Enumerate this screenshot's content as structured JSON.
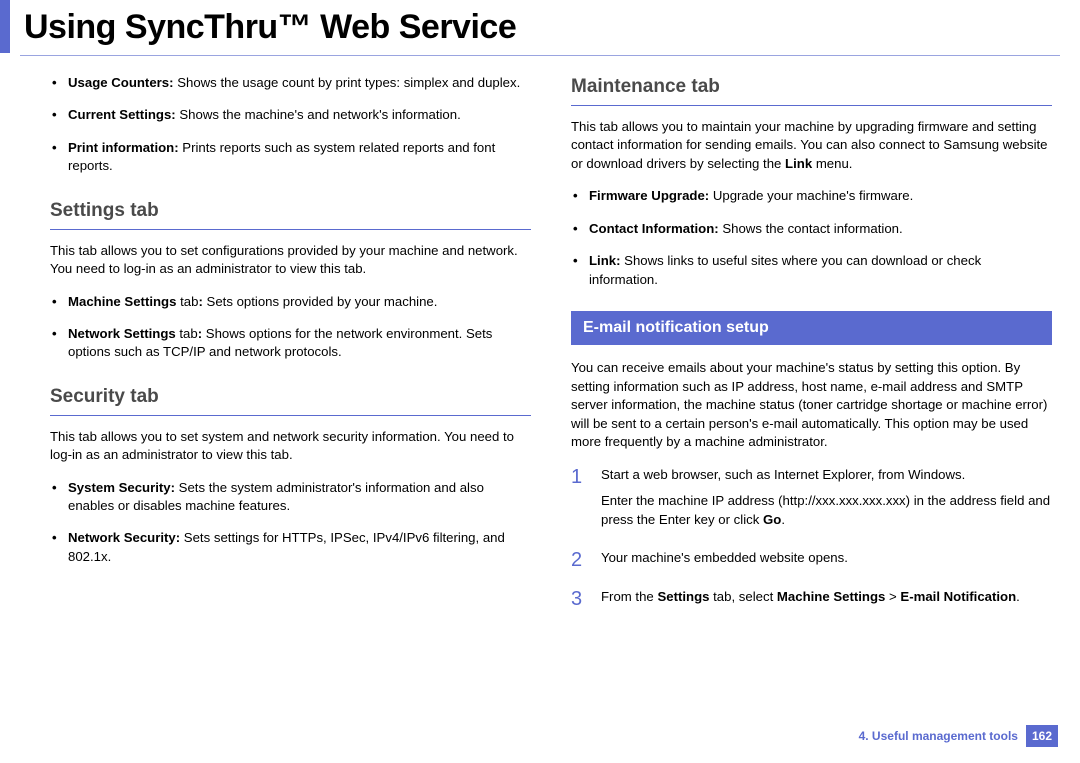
{
  "page": {
    "title": "Using SyncThru™ Web Service",
    "footer_label": "4.  Useful management tools",
    "footer_page": "162"
  },
  "colors": {
    "accent": "#5a6acf",
    "title_underline": "#9aa4e0",
    "heading_gray": "#4a4a4a"
  },
  "left": {
    "info_tab_bullets": [
      {
        "bold": "Usage Counters:",
        "text": " Shows the usage count by print types: simplex and duplex."
      },
      {
        "bold": "Current Settings:",
        "text": " Shows the machine's and network's information."
      },
      {
        "bold": "Print information:",
        "text": " Prints reports such as system related reports and font reports."
      }
    ],
    "settings": {
      "heading": "Settings tab",
      "body": "This tab allows you to set configurations provided by your machine and network. You need to log-in as an administrator to view this tab.",
      "bullets": [
        {
          "bold": "Machine Settings",
          "mid": " tab",
          "bold2": ":",
          "text": " Sets options provided by your machine."
        },
        {
          "bold": "Network Settings",
          "mid": " tab",
          "bold2": ":",
          "text": " Shows options for the network environment. Sets options such as TCP/IP and network protocols."
        }
      ]
    },
    "security": {
      "heading": "Security tab",
      "body": "This tab allows you to set system and network security information. You need to log-in as an administrator to view this tab.",
      "bullets": [
        {
          "bold": "System Security:",
          "text": " Sets the system administrator's information and also enables or disables machine features."
        },
        {
          "bold": "Network Security:",
          "text": " Sets settings for HTTPs, IPSec, IPv4/IPv6 filtering, and 802.1x."
        }
      ]
    }
  },
  "right": {
    "maintenance": {
      "heading": "Maintenance tab",
      "body_pre": "This tab allows you to maintain your machine by upgrading firmware and setting contact information for sending emails. You can also connect to Samsung website or download drivers by selecting the ",
      "body_bold": "Link",
      "body_post": " menu.",
      "bullets": [
        {
          "bold": "Firmware Upgrade:",
          "text": " Upgrade your machine's firmware."
        },
        {
          "bold": "Contact Information:",
          "text": " Shows the contact information."
        },
        {
          "bold": "Link:",
          "text": " Shows links to useful sites where you can download or check information."
        }
      ]
    },
    "email": {
      "banner": "E-mail notification setup",
      "body": "You can receive emails about your machine's status by setting this option. By setting information such as IP address, host name, e-mail address and SMTP server information, the machine status (toner cartridge shortage or machine error) will be sent to a certain person's e-mail automatically. This option may be used more frequently by a machine administrator.",
      "steps": {
        "s1": {
          "num": "1",
          "p1": "Start a web browser, such as Internet Explorer, from Windows.",
          "p2_pre": "Enter the machine IP address (http://xxx.xxx.xxx.xxx) in the address field and press the Enter key or click ",
          "p2_bold": "Go",
          "p2_post": "."
        },
        "s2": {
          "num": "2",
          "p1": "Your machine's embedded website opens."
        },
        "s3": {
          "num": "3",
          "p1_pre": "From the ",
          "p1_b1": "Settings",
          "p1_mid": " tab, select ",
          "p1_b2": "Machine Settings",
          "p1_gt": " > ",
          "p1_b3": "E-mail Notification",
          "p1_post": "."
        }
      }
    }
  }
}
